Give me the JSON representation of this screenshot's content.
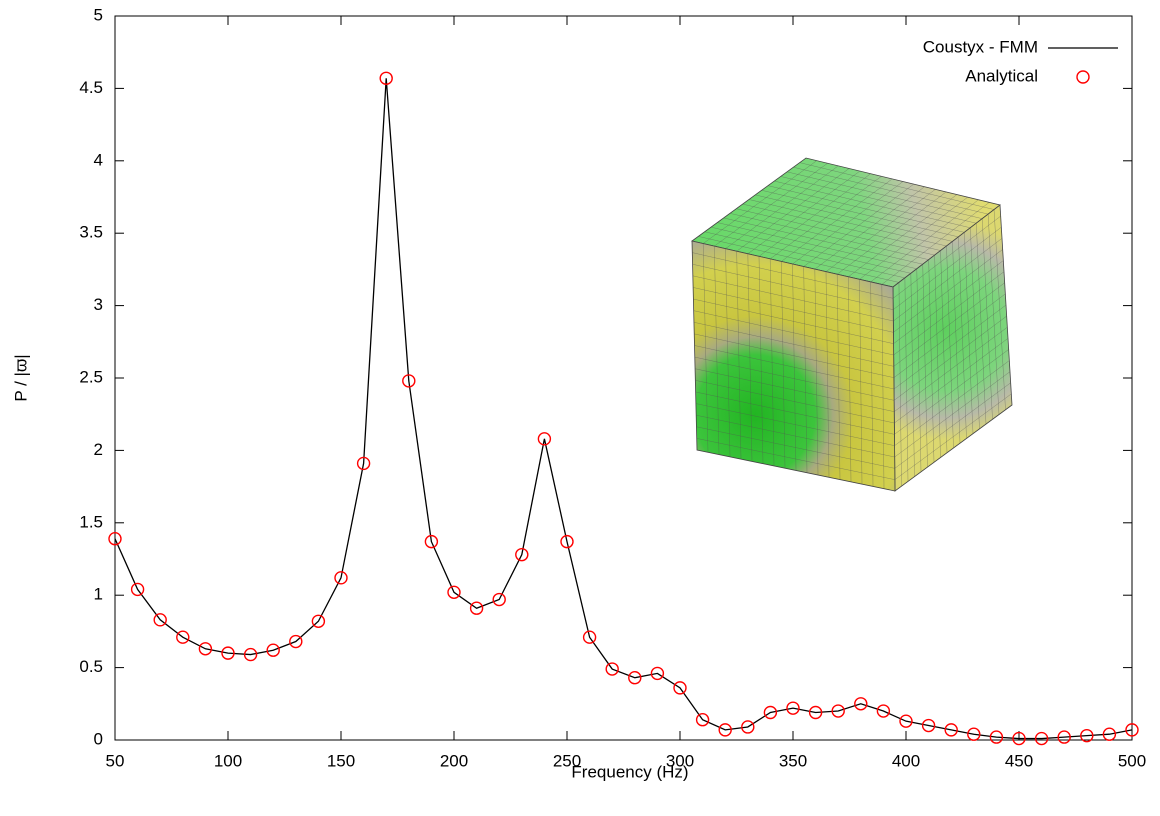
{
  "chart_data": {
    "type": "line",
    "x_label": "Frequency (Hz)",
    "y_label": "P / |ϖ|",
    "x": [
      50,
      60,
      70,
      80,
      90,
      100,
      110,
      120,
      130,
      140,
      150,
      160,
      170,
      180,
      190,
      200,
      210,
      220,
      230,
      240,
      250,
      260,
      270,
      280,
      290,
      300,
      310,
      320,
      330,
      340,
      350,
      360,
      370,
      380,
      390,
      400,
      410,
      420,
      430,
      440,
      450,
      460,
      470,
      480,
      490,
      500
    ],
    "series": [
      {
        "name": "Coustyx - FMM",
        "color": "#000000",
        "style": "line",
        "values": [
          1.39,
          1.04,
          0.83,
          0.71,
          0.63,
          0.6,
          0.59,
          0.62,
          0.68,
          0.82,
          1.12,
          1.91,
          4.57,
          2.48,
          1.37,
          1.02,
          0.91,
          0.97,
          1.28,
          2.08,
          1.37,
          0.71,
          0.49,
          0.43,
          0.46,
          0.36,
          0.14,
          0.07,
          0.09,
          0.19,
          0.22,
          0.19,
          0.2,
          0.25,
          0.2,
          0.13,
          0.1,
          0.07,
          0.04,
          0.02,
          0.01,
          0.01,
          0.02,
          0.03,
          0.04,
          0.07
        ]
      },
      {
        "name": "Analytical",
        "color": "#ff0000",
        "style": "circle",
        "values": [
          1.39,
          1.04,
          0.83,
          0.71,
          0.63,
          0.6,
          0.59,
          0.62,
          0.68,
          0.82,
          1.12,
          1.91,
          4.57,
          2.48,
          1.37,
          1.02,
          0.91,
          0.97,
          1.28,
          2.08,
          1.37,
          0.71,
          0.49,
          0.43,
          0.46,
          0.36,
          0.14,
          0.07,
          0.09,
          0.19,
          0.22,
          0.19,
          0.2,
          0.25,
          0.2,
          0.13,
          0.1,
          0.07,
          0.04,
          0.02,
          0.01,
          0.01,
          0.02,
          0.03,
          0.04,
          0.07
        ]
      }
    ],
    "xlim": [
      50,
      500
    ],
    "xticks": [
      50,
      100,
      150,
      200,
      250,
      300,
      350,
      400,
      450,
      500
    ],
    "ylim": [
      0,
      5
    ],
    "yticks": [
      0,
      0.5,
      1,
      1.5,
      2,
      2.5,
      3,
      3.5,
      4,
      4.5,
      5
    ],
    "legend": "top-right"
  }
}
